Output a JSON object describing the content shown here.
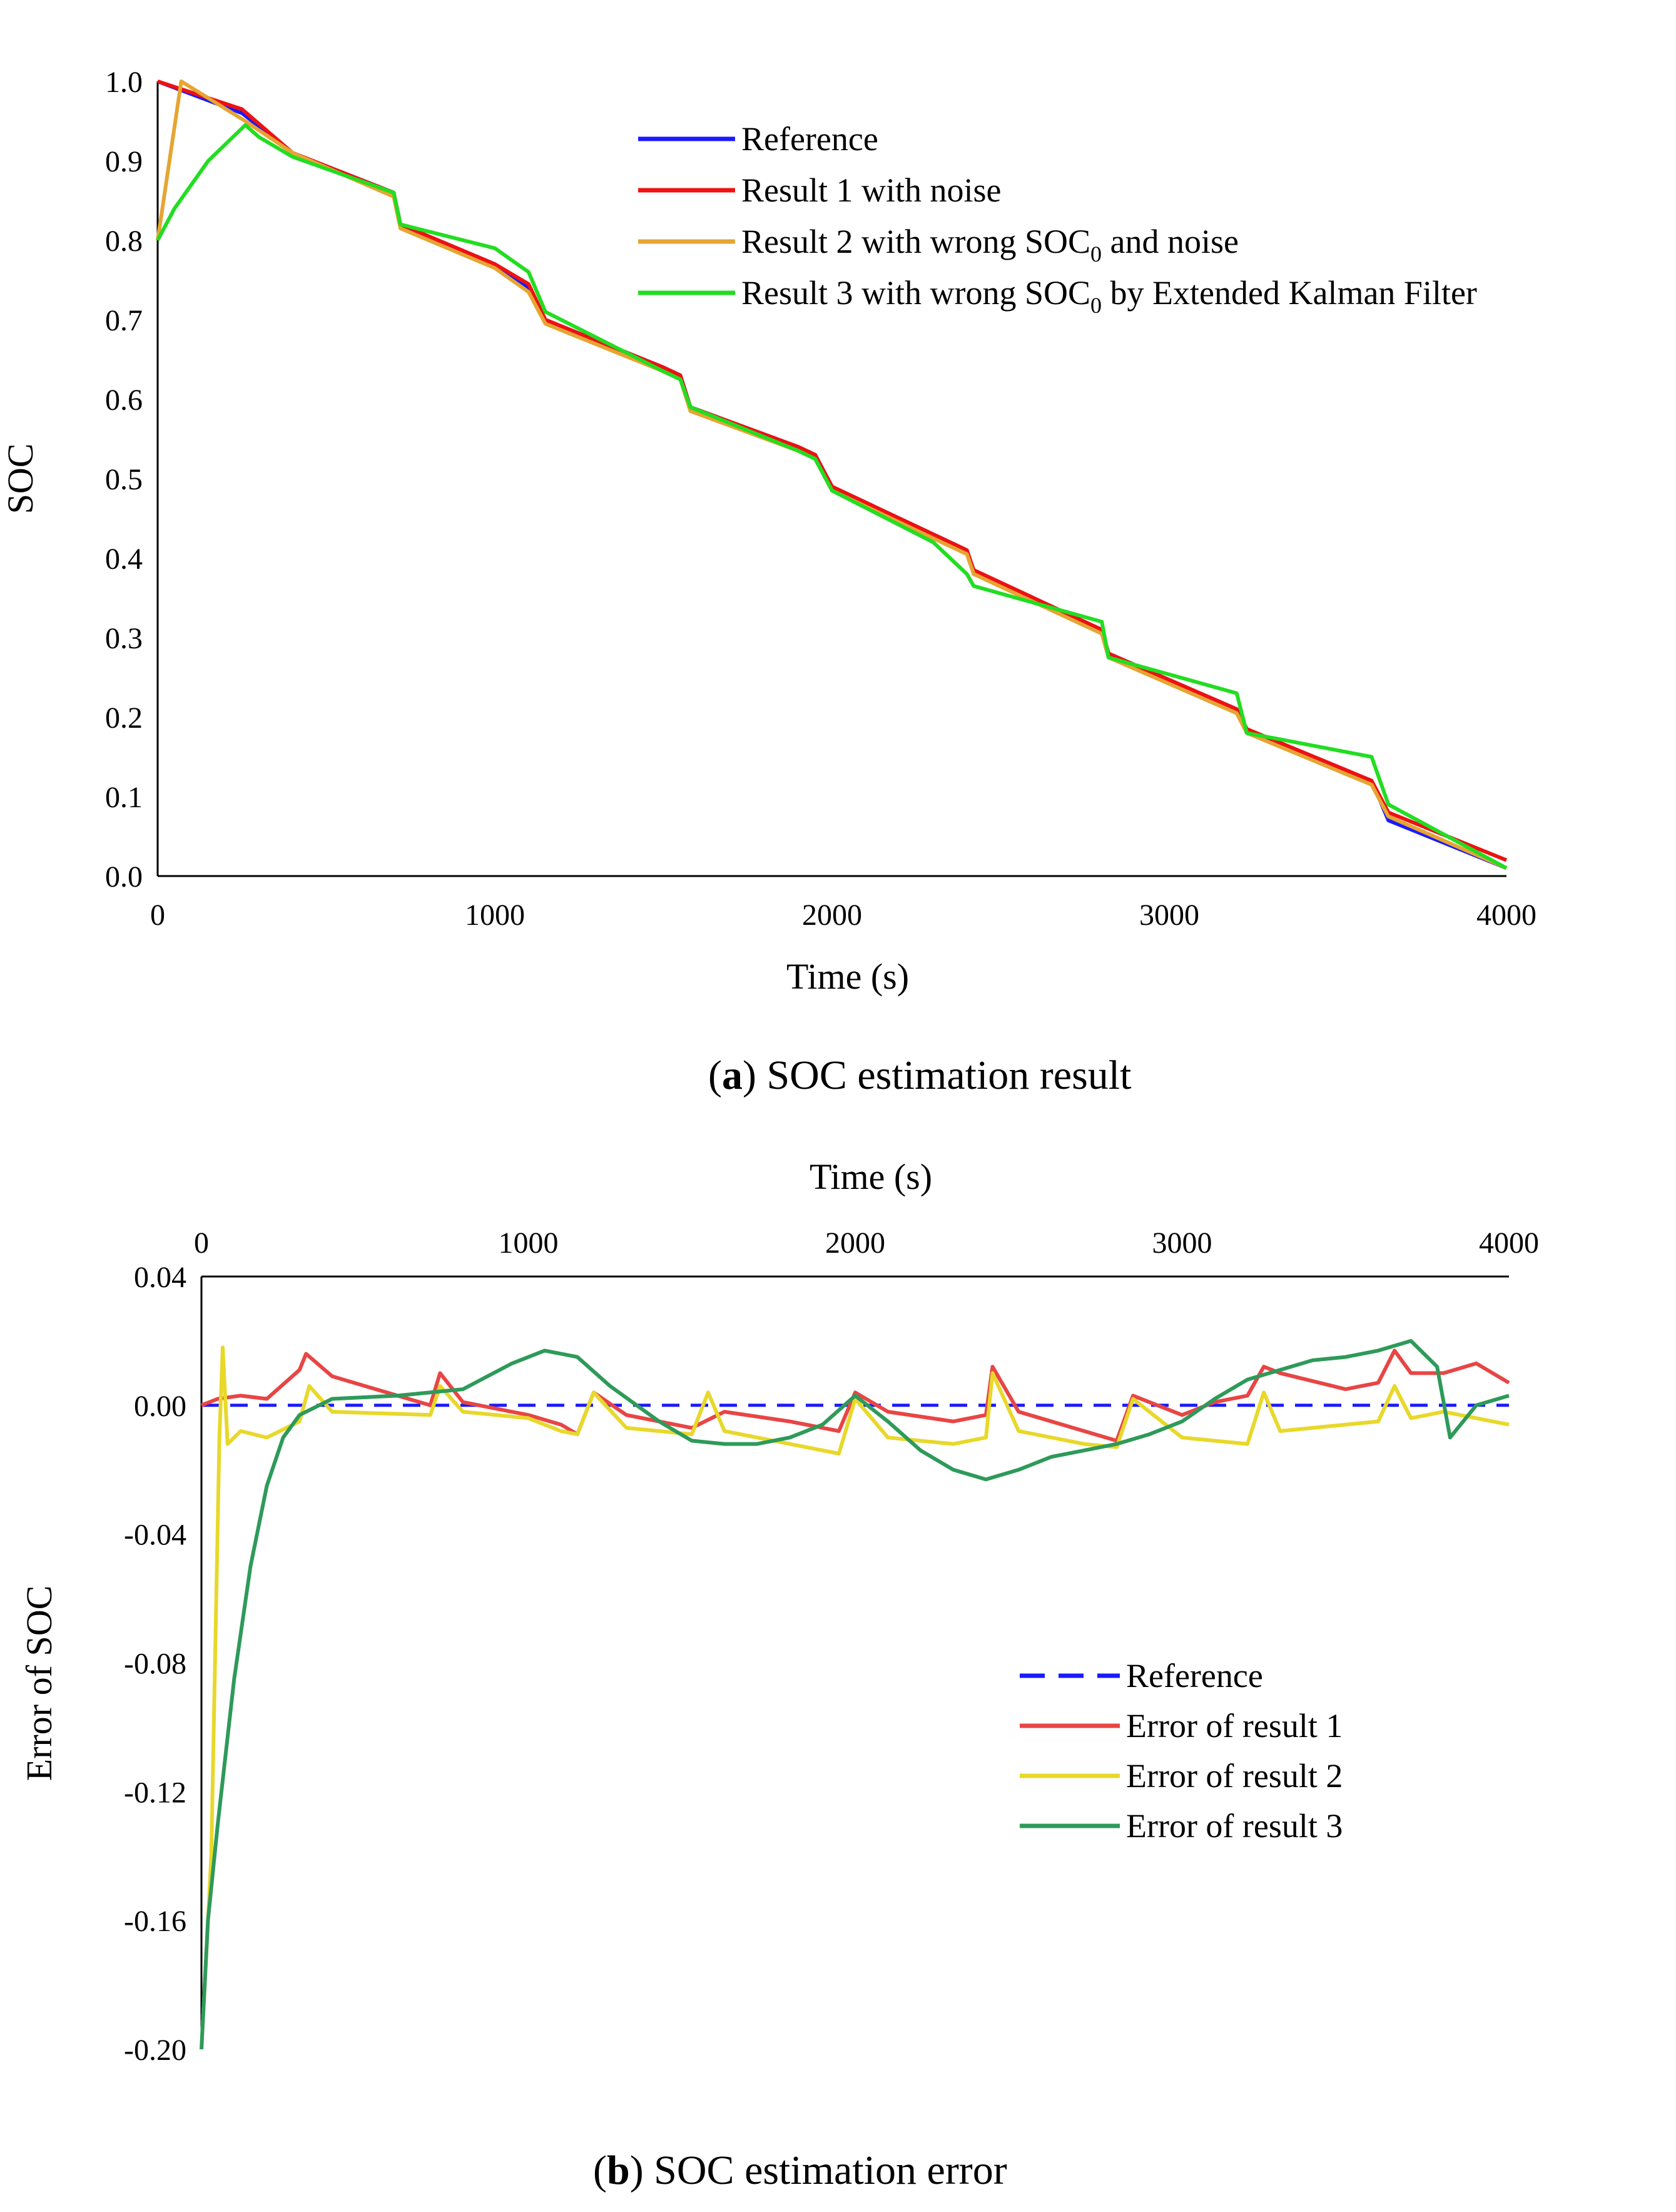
{
  "chart_data": [
    {
      "id": "a",
      "type": "line",
      "caption": {
        "prefix": "(",
        "letter": "a",
        "suffix": ") SOC estimation result"
      },
      "xlabel": "Time (s)",
      "ylabel": "SOC",
      "xlim": [
        0,
        4000
      ],
      "ylim": [
        0,
        1.0
      ],
      "xticks": [
        0,
        1000,
        2000,
        3000,
        4000
      ],
      "xtick_labels": [
        "0",
        "1000",
        "2000",
        "3000",
        "4000"
      ],
      "yticks": [
        0,
        0.1,
        0.2,
        0.3,
        0.4,
        0.5,
        0.6,
        0.7,
        0.8,
        0.9,
        1.0
      ],
      "ytick_labels": [
        "0.0",
        "0.1",
        "0.2",
        "0.3",
        "0.4",
        "0.5",
        "0.6",
        "0.7",
        "0.8",
        "0.9",
        "1.0"
      ],
      "legend_position": "top-right",
      "series": [
        {
          "name": "Reference",
          "legend_label": "Reference",
          "color": "#1a1aff",
          "x": [
            0,
            250,
            400,
            700,
            720,
            1000,
            1100,
            1150,
            1500,
            1550,
            1580,
            1900,
            1950,
            2000,
            2400,
            2420,
            2800,
            2820,
            3200,
            3230,
            3600,
            3650,
            4000
          ],
          "y": [
            1.0,
            0.96,
            0.91,
            0.86,
            0.82,
            0.77,
            0.74,
            0.7,
            0.64,
            0.63,
            0.59,
            0.54,
            0.53,
            0.49,
            0.41,
            0.38,
            0.31,
            0.28,
            0.21,
            0.18,
            0.12,
            0.07,
            0.01
          ]
        },
        {
          "name": "Result 1 with noise",
          "legend_label": "Result 1 with noise",
          "color": "#ee1111",
          "x": [
            0,
            250,
            400,
            700,
            720,
            1000,
            1100,
            1150,
            1500,
            1550,
            1580,
            1900,
            1950,
            2000,
            2400,
            2420,
            2800,
            2820,
            3200,
            3230,
            3600,
            3650,
            4000
          ],
          "y": [
            1.0,
            0.965,
            0.91,
            0.86,
            0.82,
            0.77,
            0.745,
            0.7,
            0.64,
            0.63,
            0.59,
            0.54,
            0.53,
            0.49,
            0.41,
            0.385,
            0.31,
            0.28,
            0.21,
            0.185,
            0.12,
            0.08,
            0.02
          ]
        },
        {
          "name": "Result 2 with wrong SOC0 and noise",
          "legend_label": "Result 2 with wrong SOC",
          "legend_sub": "0",
          "legend_tail": " and noise",
          "color": "#e6a532",
          "x": [
            0,
            70,
            260,
            400,
            700,
            720,
            1000,
            1100,
            1150,
            1500,
            1550,
            1580,
            1900,
            1950,
            2000,
            2400,
            2420,
            2800,
            2820,
            3200,
            3230,
            3600,
            3650,
            4000
          ],
          "y": [
            0.8,
            1.0,
            0.95,
            0.91,
            0.855,
            0.815,
            0.765,
            0.735,
            0.695,
            0.635,
            0.625,
            0.585,
            0.535,
            0.525,
            0.485,
            0.405,
            0.38,
            0.305,
            0.275,
            0.205,
            0.18,
            0.115,
            0.075,
            0.01
          ]
        },
        {
          "name": "Result 3 with wrong SOC0 by Extended Kalman Filter",
          "legend_label": "Result 3 with wrong SOC",
          "legend_sub": "0",
          "legend_tail": " by Extended Kalman Filter",
          "color": "#22dd22",
          "x": [
            0,
            50,
            150,
            260,
            300,
            400,
            700,
            720,
            1000,
            1100,
            1150,
            1500,
            1550,
            1580,
            1900,
            1950,
            2000,
            2300,
            2400,
            2420,
            2800,
            2820,
            3200,
            3230,
            3600,
            3650,
            4000
          ],
          "y": [
            0.8,
            0.84,
            0.9,
            0.945,
            0.93,
            0.905,
            0.86,
            0.82,
            0.79,
            0.76,
            0.71,
            0.635,
            0.625,
            0.59,
            0.535,
            0.525,
            0.485,
            0.42,
            0.38,
            0.365,
            0.32,
            0.275,
            0.23,
            0.18,
            0.15,
            0.09,
            0.01
          ]
        }
      ]
    },
    {
      "id": "b",
      "type": "line",
      "caption": {
        "prefix": "(",
        "letter": "b",
        "suffix": ") SOC estimation error"
      },
      "xlabel": "Time (s)",
      "xaxis_position": "top",
      "ylabel": "Error of SOC",
      "xlim": [
        0,
        4000
      ],
      "ylim": [
        -0.2,
        0.04
      ],
      "xticks": [
        0,
        1000,
        2000,
        3000,
        4000
      ],
      "xtick_labels": [
        "0",
        "1000",
        "2000",
        "3000",
        "4000"
      ],
      "yticks": [
        0.04,
        0.0,
        -0.04,
        -0.08,
        -0.12,
        -0.16,
        -0.2
      ],
      "ytick_labels": [
        "0.04",
        "0.00",
        "-0.04",
        "-0.08",
        "-0.12",
        "-0.16",
        "-0.20"
      ],
      "legend_position": "center-right",
      "series": [
        {
          "name": "Reference",
          "legend_label": "Reference",
          "color": "#1a1aff",
          "dashed": true,
          "x": [
            0,
            4000
          ],
          "y": [
            0,
            0
          ]
        },
        {
          "name": "Error of result 1",
          "legend_label": "Error of result 1",
          "color": "#e84545",
          "x": [
            0,
            50,
            120,
            200,
            300,
            320,
            400,
            500,
            700,
            730,
            800,
            1000,
            1100,
            1150,
            1200,
            1300,
            1500,
            1600,
            1800,
            1950,
            2000,
            2100,
            2300,
            2400,
            2420,
            2500,
            2700,
            2800,
            2850,
            3000,
            3100,
            3200,
            3250,
            3300,
            3500,
            3600,
            3650,
            3700,
            3800,
            3900,
            4000
          ],
          "y": [
            0.0,
            0.002,
            0.003,
            0.002,
            0.011,
            0.016,
            0.009,
            0.006,
            0.0,
            0.01,
            0.001,
            -0.003,
            -0.006,
            -0.009,
            0.004,
            -0.003,
            -0.007,
            -0.002,
            -0.005,
            -0.008,
            0.004,
            -0.002,
            -0.005,
            -0.003,
            0.012,
            -0.002,
            -0.008,
            -0.011,
            0.003,
            -0.003,
            0.001,
            0.003,
            0.012,
            0.01,
            0.005,
            0.007,
            0.017,
            0.01,
            0.01,
            0.013,
            0.007
          ]
        },
        {
          "name": "Error of result 2",
          "legend_label": "Error of result 2",
          "color": "#e8d82a",
          "x": [
            0,
            30,
            55,
            65,
            80,
            120,
            200,
            300,
            330,
            400,
            700,
            730,
            800,
            1000,
            1100,
            1150,
            1200,
            1300,
            1500,
            1550,
            1600,
            1800,
            1950,
            2000,
            2100,
            2300,
            2400,
            2420,
            2500,
            2700,
            2800,
            2850,
            3000,
            3200,
            3250,
            3300,
            3600,
            3650,
            3700,
            3800,
            4000
          ],
          "y": [
            -0.2,
            -0.14,
            -0.01,
            0.018,
            -0.012,
            -0.008,
            -0.01,
            -0.005,
            0.006,
            -0.002,
            -0.003,
            0.006,
            -0.002,
            -0.004,
            -0.008,
            -0.009,
            0.004,
            -0.007,
            -0.009,
            0.004,
            -0.008,
            -0.012,
            -0.015,
            0.002,
            -0.01,
            -0.012,
            -0.01,
            0.01,
            -0.008,
            -0.012,
            -0.013,
            0.002,
            -0.01,
            -0.012,
            0.004,
            -0.008,
            -0.005,
            0.006,
            -0.004,
            -0.002,
            -0.006
          ]
        },
        {
          "name": "Error of result 3",
          "legend_label": "Error of result 3",
          "color": "#2e9a5a",
          "x": [
            0,
            20,
            50,
            100,
            150,
            200,
            250,
            300,
            400,
            600,
            800,
            950,
            1050,
            1150,
            1250,
            1400,
            1500,
            1600,
            1700,
            1800,
            1900,
            2000,
            2100,
            2200,
            2300,
            2400,
            2500,
            2600,
            2700,
            2800,
            2900,
            3000,
            3100,
            3200,
            3300,
            3400,
            3500,
            3600,
            3700,
            3780,
            3820,
            3900,
            4000
          ],
          "y": [
            -0.2,
            -0.16,
            -0.13,
            -0.085,
            -0.05,
            -0.025,
            -0.01,
            -0.003,
            0.002,
            0.003,
            0.005,
            0.013,
            0.017,
            0.015,
            0.006,
            -0.005,
            -0.011,
            -0.012,
            -0.012,
            -0.01,
            -0.006,
            0.003,
            -0.005,
            -0.014,
            -0.02,
            -0.023,
            -0.02,
            -0.016,
            -0.014,
            -0.012,
            -0.009,
            -0.005,
            0.002,
            0.008,
            0.011,
            0.014,
            0.015,
            0.017,
            0.02,
            0.012,
            -0.01,
            0.0,
            0.003
          ]
        }
      ]
    }
  ]
}
